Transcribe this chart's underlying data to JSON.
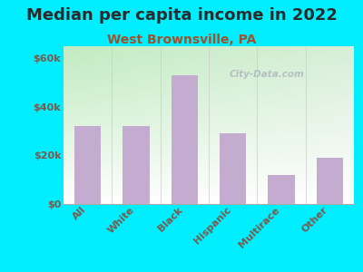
{
  "title": "Median per capita income in 2022",
  "subtitle": "West Brownsville, PA",
  "categories": [
    "All",
    "White",
    "Black",
    "Hispanic",
    "Multirace",
    "Other"
  ],
  "values": [
    32000,
    32000,
    53000,
    29000,
    12000,
    19000
  ],
  "bar_color": "#c4acd0",
  "background_outer": "#00eeff",
  "title_color": "#2a2a2a",
  "subtitle_color": "#a0522d",
  "tick_color": "#7a5a4a",
  "ytick_labels": [
    "$0",
    "$20k",
    "$40k",
    "$60k"
  ],
  "ytick_values": [
    0,
    20000,
    40000,
    60000
  ],
  "ylim": [
    0,
    65000
  ],
  "watermark": "City-Data.com",
  "title_fontsize": 13,
  "subtitle_fontsize": 10,
  "tick_fontsize": 8
}
